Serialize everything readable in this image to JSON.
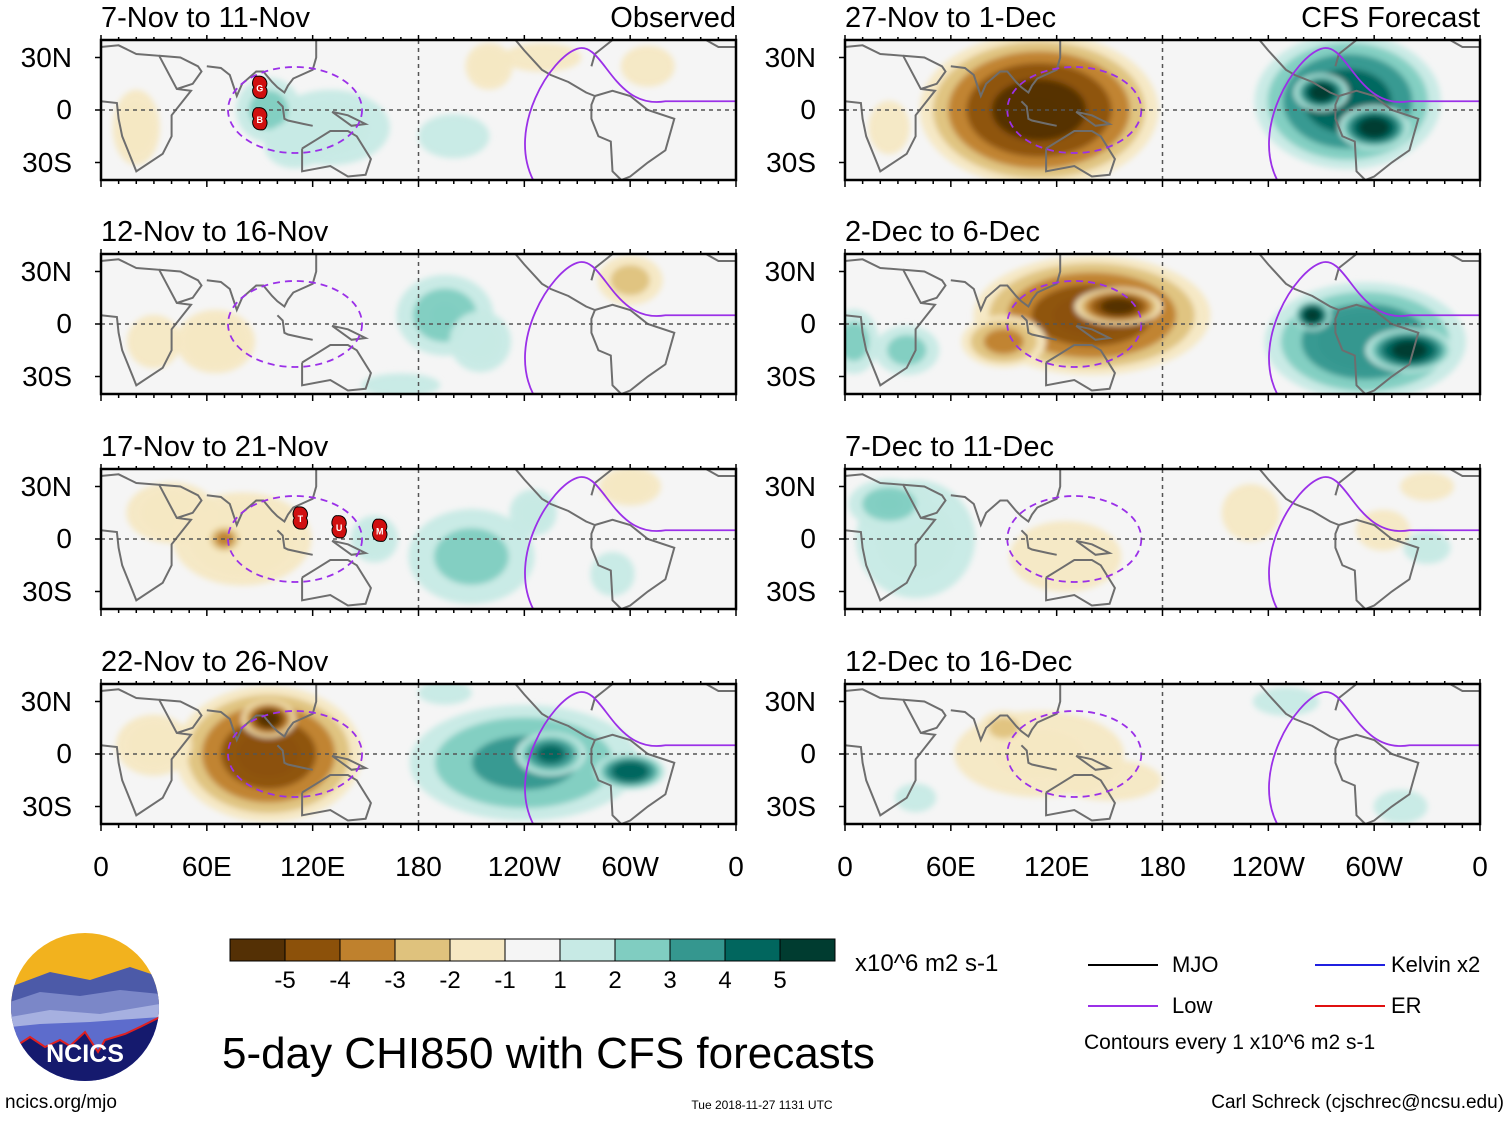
{
  "title": "5-day CHI850 with CFS forecasts",
  "source_url_text": "ncics.org/mjo",
  "logo_text": "NCICS",
  "timestamp": "Tue 2018-11-27 1131 UTC",
  "author": "Carl Schreck (cjschrec@ncsu.edu)",
  "columns": {
    "left": "Observed",
    "right": "CFS Forecast"
  },
  "colors": {
    "low_contour": "#9b30e8",
    "kelvin": "#2020e0",
    "er": "#e01010",
    "mjo": "#000000",
    "land": "#6e6e6e"
  },
  "chart_data": {
    "type": "heatmap",
    "variable": "850-hPa velocity potential anomaly (CHI850)",
    "units": "x10^6 m2 s-1",
    "xaxis": {
      "ticks": [
        "0",
        "60E",
        "120E",
        "180",
        "120W",
        "60W",
        "0"
      ],
      "range_deg_east": [
        0,
        360
      ]
    },
    "yaxis": {
      "ticks": [
        "30N",
        "0",
        "30S"
      ],
      "range_deg_lat": [
        -40,
        40
      ]
    },
    "colorbar": {
      "levels": [
        "-5",
        "-4",
        "-3",
        "-2",
        "-1",
        "1",
        "2",
        "3",
        "4",
        "5"
      ],
      "colors": [
        "#543005",
        "#8c510a",
        "#bf812d",
        "#dfc27d",
        "#f6e8c3",
        "#f5f5f5",
        "#c7eae5",
        "#80cdc1",
        "#35978f",
        "#01665e",
        "#003c30"
      ]
    },
    "legend": {
      "entries": [
        {
          "label": "MJO",
          "color": "#000000"
        },
        {
          "label": "Kelvin x2",
          "color": "#2020e0"
        },
        {
          "label": "Low",
          "color": "#9b30e8"
        },
        {
          "label": "ER",
          "color": "#e01010"
        }
      ],
      "note": "Contours every 1 x10^6 m2 s-1"
    },
    "panels": [
      {
        "label": "7-Nov to 11-Nov",
        "kind": "Observed",
        "column": "left",
        "blobs": [
          [
            130,
            -10,
            40,
            25,
            1.5
          ],
          [
            95,
            0,
            20,
            20,
            2
          ],
          [
            200,
            -15,
            25,
            15,
            1.2
          ],
          [
            110,
            -20,
            20,
            15,
            1.5
          ],
          [
            20,
            -10,
            15,
            25,
            -1.5
          ],
          [
            220,
            25,
            15,
            15,
            -1.5
          ],
          [
            310,
            25,
            20,
            15,
            -1
          ],
          [
            250,
            30,
            30,
            10,
            -1
          ]
        ],
        "tc": [
          {
            "lon": 90,
            "lat": 13,
            "id": "G"
          },
          {
            "lon": 90,
            "lat": -5,
            "id": "B"
          }
        ]
      },
      {
        "label": "12-Nov to 16-Nov",
        "kind": "Observed",
        "column": "left",
        "blobs": [
          [
            195,
            5,
            30,
            25,
            2.2
          ],
          [
            215,
            -10,
            20,
            20,
            1.5
          ],
          [
            65,
            -10,
            25,
            20,
            -1.8
          ],
          [
            30,
            -10,
            20,
            20,
            -1
          ],
          [
            300,
            25,
            20,
            15,
            -2
          ],
          [
            170,
            -35,
            30,
            8,
            1
          ]
        ],
        "tc": []
      },
      {
        "label": "17-Nov to 21-Nov",
        "kind": "Observed",
        "column": "left",
        "blobs": [
          [
            80,
            0,
            45,
            30,
            -1.8
          ],
          [
            70,
            0,
            10,
            8,
            -3
          ],
          [
            40,
            15,
            30,
            20,
            -1.5
          ],
          [
            210,
            -10,
            40,
            30,
            2
          ],
          [
            245,
            15,
            15,
            15,
            1.5
          ],
          [
            155,
            0,
            15,
            15,
            1.5
          ],
          [
            290,
            -20,
            15,
            15,
            1.2
          ],
          [
            300,
            30,
            20,
            12,
            -1.5
          ]
        ],
        "tc": [
          {
            "lon": 113,
            "lat": 12,
            "id": "T"
          },
          {
            "lon": 135,
            "lat": 7,
            "id": "U"
          },
          {
            "lon": 158,
            "lat": 5,
            "id": "M"
          }
        ]
      },
      {
        "label": "22-Nov to 26-Nov",
        "kind": "Observed",
        "column": "left",
        "blobs": [
          [
            95,
            0,
            55,
            40,
            -4.5
          ],
          [
            95,
            20,
            15,
            10,
            -5.2
          ],
          [
            240,
            -5,
            70,
            35,
            3
          ],
          [
            255,
            0,
            20,
            12,
            4
          ],
          [
            300,
            -10,
            20,
            10,
            4.5
          ],
          [
            30,
            5,
            25,
            20,
            -1.5
          ],
          [
            195,
            35,
            20,
            8,
            1
          ]
        ],
        "tc": []
      },
      {
        "label": "27-Nov to 1-Dec",
        "kind": "CFS Forecast",
        "column": "right",
        "blobs": [
          [
            110,
            0,
            70,
            45,
            -5.2
          ],
          [
            285,
            5,
            55,
            40,
            4.3
          ],
          [
            300,
            -10,
            20,
            12,
            5.3
          ],
          [
            270,
            10,
            15,
            10,
            5.3
          ],
          [
            25,
            -10,
            15,
            20,
            -1
          ]
        ],
        "tc": []
      },
      {
        "label": "2-Dec to 6-Dec",
        "kind": "CFS Forecast",
        "column": "right",
        "blobs": [
          [
            140,
            5,
            70,
            35,
            -4.5
          ],
          [
            155,
            10,
            25,
            10,
            -5.2
          ],
          [
            90,
            -10,
            25,
            15,
            -3
          ],
          [
            295,
            -10,
            60,
            35,
            3.8
          ],
          [
            320,
            -15,
            25,
            12,
            5.2
          ],
          [
            265,
            5,
            10,
            8,
            5.2
          ],
          [
            5,
            -10,
            15,
            20,
            2
          ],
          [
            35,
            -15,
            20,
            15,
            2
          ]
        ],
        "tc": []
      },
      {
        "label": "7-Dec to 11-Dec",
        "kind": "CFS Forecast",
        "column": "right",
        "blobs": [
          [
            40,
            0,
            40,
            40,
            1.5
          ],
          [
            25,
            20,
            25,
            15,
            2.2
          ],
          [
            125,
            -10,
            40,
            25,
            -1.2
          ],
          [
            230,
            15,
            20,
            20,
            -1.2
          ],
          [
            330,
            30,
            20,
            10,
            -1
          ],
          [
            330,
            -5,
            15,
            10,
            1.5
          ],
          [
            305,
            5,
            20,
            15,
            -1
          ]
        ],
        "tc": []
      },
      {
        "label": "12-Dec to 16-Dec",
        "kind": "CFS Forecast",
        "column": "right",
        "blobs": [
          [
            110,
            0,
            60,
            30,
            -1.3
          ],
          [
            90,
            15,
            15,
            10,
            -2
          ],
          [
            150,
            -15,
            40,
            15,
            -1
          ],
          [
            250,
            30,
            25,
            10,
            1
          ],
          [
            315,
            -30,
            20,
            12,
            1
          ],
          [
            40,
            -25,
            15,
            10,
            1
          ]
        ],
        "tc": []
      }
    ]
  }
}
